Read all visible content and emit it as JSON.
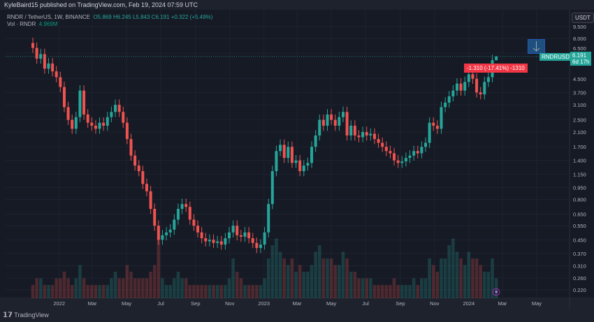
{
  "header": {
    "publisher_line": "KyleBaird15 published on TradingView.com, Feb 19, 2024 07:59 UTC"
  },
  "legend": {
    "symbol": "RNDR / TetherUS, 1W, BINANCE",
    "open": "O5.869",
    "high": "H6.245",
    "low": "L5.843",
    "close": "C6.191",
    "change": "+0.322 (+5.49%)",
    "volume_label": "Vol · RNDR",
    "volume_value": "4.969M"
  },
  "axis": {
    "currency_button": "USDT"
  },
  "price_tag": {
    "symbol": "RNDRUSDT",
    "price": "6.191",
    "countdown": "6d 17h"
  },
  "measure_tag": "-1.310 (-17.41%) -1310",
  "footer": {
    "brand": "TradingView"
  },
  "colors": {
    "up": "#26a69a",
    "down": "#ef5350",
    "background": "#161a25"
  },
  "chart_data": {
    "type": "candlestick",
    "scale": "log",
    "interval": "1W",
    "start_week": "2021-11-15",
    "first_open": 7.5,
    "closes": [
      7.0,
      6.0,
      6.4,
      5.2,
      5.6,
      5.0,
      4.6,
      4.0,
      3.0,
      2.5,
      2.2,
      2.6,
      3.8,
      2.7,
      2.4,
      2.3,
      2.2,
      2.4,
      2.3,
      2.6,
      2.8,
      3.1,
      2.8,
      2.4,
      1.9,
      1.5,
      1.3,
      1.2,
      1.0,
      0.9,
      0.7,
      0.55,
      0.45,
      0.48,
      0.5,
      0.52,
      0.6,
      0.7,
      0.75,
      0.72,
      0.6,
      0.55,
      0.5,
      0.46,
      0.44,
      0.45,
      0.43,
      0.44,
      0.42,
      0.46,
      0.5,
      0.55,
      0.48,
      0.47,
      0.5,
      0.46,
      0.43,
      0.4,
      0.42,
      0.5,
      0.75,
      1.2,
      1.6,
      1.75,
      1.45,
      1.7,
      1.35,
      1.4,
      1.2,
      1.3,
      1.35,
      1.7,
      2.0,
      2.5,
      2.3,
      2.7,
      2.5,
      2.3,
      2.6,
      2.8,
      2.0,
      2.3,
      2.0,
      1.95,
      2.1,
      2.0,
      2.05,
      1.9,
      1.8,
      1.7,
      1.6,
      1.55,
      1.4,
      1.35,
      1.38,
      1.45,
      1.5,
      1.6,
      1.55,
      1.7,
      1.8,
      2.4,
      2.3,
      2.2,
      3.0,
      3.2,
      3.5,
      3.8,
      4.2,
      3.8,
      4.3,
      4.8,
      4.5,
      3.7,
      3.6,
      4.3,
      4.6,
      5.869,
      6.191
    ],
    "last_candle": {
      "open": 5.869,
      "high": 6.245,
      "low": 5.843,
      "close": 6.191
    },
    "volume": [
      2,
      3,
      3,
      2,
      2,
      2,
      3,
      3,
      4,
      3,
      2,
      3,
      5,
      3,
      2,
      2,
      2,
      2,
      2,
      2,
      3,
      4,
      3,
      3,
      5,
      4,
      3,
      3,
      3,
      3,
      4,
      5,
      9,
      3,
      2,
      2,
      3,
      4,
      3,
      3,
      2,
      2,
      2,
      2,
      2,
      2,
      2,
      2,
      2,
      2,
      3,
      6,
      4,
      3,
      2,
      2,
      2,
      2,
      2,
      3,
      6,
      8,
      9,
      7,
      6,
      5,
      6,
      4,
      5,
      4,
      4,
      5,
      7,
      8,
      6,
      6,
      6,
      5,
      5,
      7,
      6,
      4,
      4,
      3,
      3,
      3,
      3,
      2,
      2,
      2,
      2,
      2,
      3,
      2,
      2,
      2,
      2,
      3,
      2,
      3,
      3,
      6,
      5,
      4,
      6,
      6,
      8,
      9,
      7,
      6,
      5,
      7,
      6,
      6,
      5,
      4,
      4,
      6,
      3
    ],
    "y_ticks": [
      "9.500",
      "8.000",
      "6.500",
      "4.500",
      "3.700",
      "3.100",
      "2.500",
      "2.100",
      "1.700",
      "1.400",
      "1.150",
      "0.950",
      "0.800",
      "0.650",
      "0.550",
      "0.450",
      "0.370",
      "0.310",
      "0.260",
      "0.220"
    ],
    "x_ticks": [
      {
        "label": "2022",
        "date": "2022-01-01"
      },
      {
        "label": "Mar",
        "date": "2022-03-01"
      },
      {
        "label": "May",
        "date": "2022-05-01"
      },
      {
        "label": "Jul",
        "date": "2022-07-01"
      },
      {
        "label": "Sep",
        "date": "2022-09-01"
      },
      {
        "label": "Nov",
        "date": "2022-11-01"
      },
      {
        "label": "2023",
        "date": "2023-01-01"
      },
      {
        "label": "Mar",
        "date": "2023-03-01"
      },
      {
        "label": "May",
        "date": "2023-05-01"
      },
      {
        "label": "Jul",
        "date": "2023-07-01"
      },
      {
        "label": "Sep",
        "date": "2023-09-01"
      },
      {
        "label": "Nov",
        "date": "2023-11-01"
      },
      {
        "label": "2024",
        "date": "2024-01-01"
      },
      {
        "label": "Mar",
        "date": "2024-03-01"
      },
      {
        "label": "May",
        "date": "2024-05-01"
      }
    ]
  }
}
